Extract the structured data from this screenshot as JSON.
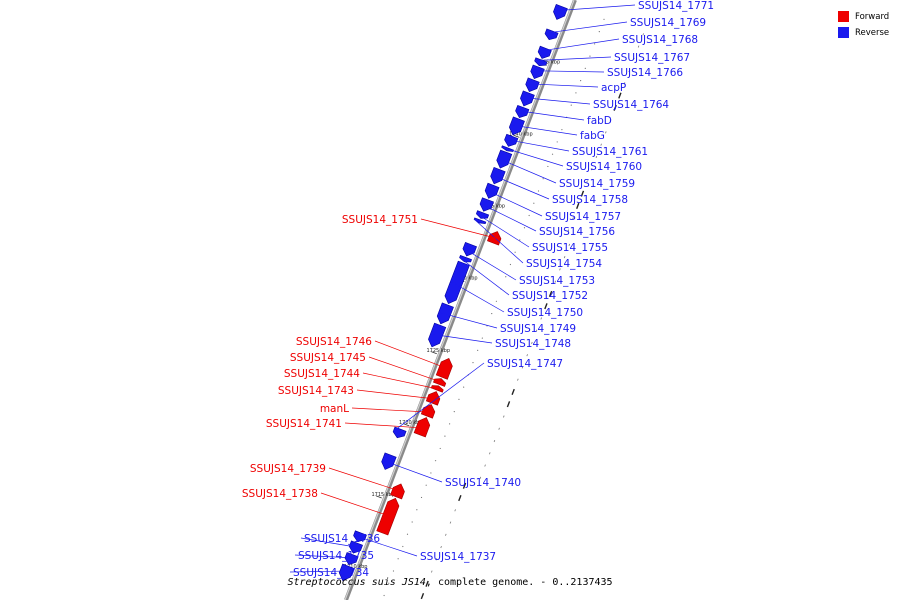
{
  "colors": {
    "forward": "#ee0000",
    "reverse": "#1a1aee",
    "backbone": "#aaaaaa"
  },
  "legend": [
    {
      "label": "Forward",
      "color": "#ee0000"
    },
    {
      "label": "Reverse",
      "color": "#1a1aee"
    }
  ],
  "caption": {
    "organism": "Streptococcus suis JS14",
    "rest": ", complete genome. - 0..2137435"
  },
  "ticks": [
    {
      "kbp": 1745,
      "label": "1745 kbp"
    },
    {
      "kbp": 1740,
      "label": "1740 kbp"
    },
    {
      "kbp": 1735,
      "label": "1735 kbp"
    },
    {
      "kbp": 1730,
      "label": "1730 kbp"
    },
    {
      "kbp": 1725,
      "label": "1725 kbp"
    },
    {
      "kbp": 1720,
      "label": "1720 kbp"
    },
    {
      "kbp": 1715,
      "label": "1715 kbp"
    },
    {
      "kbp": 1710,
      "label": "1710 kbp"
    }
  ],
  "genes": [
    {
      "name": "SSUJS14_1771",
      "strand": "reverse",
      "start": 1748.0,
      "end": 1748.9
    },
    {
      "name": "SSUJS14_1769",
      "strand": "reverse",
      "start": 1746.6,
      "end": 1747.2
    },
    {
      "name": "SSUJS14_1768",
      "strand": "reverse",
      "start": 1745.3,
      "end": 1746.0
    },
    {
      "name": "SSUJS14_1767",
      "strand": "reverse",
      "start": 1744.8,
      "end": 1745.2
    },
    {
      "name": "SSUJS14_1766",
      "strand": "reverse",
      "start": 1743.9,
      "end": 1744.7
    },
    {
      "name": "acpP",
      "strand": "reverse",
      "start": 1743.0,
      "end": 1743.8
    },
    {
      "name": "SSUJS14_1764",
      "strand": "reverse",
      "start": 1742.0,
      "end": 1742.9
    },
    {
      "name": "fabD",
      "strand": "reverse",
      "start": 1741.2,
      "end": 1741.9
    },
    {
      "name": "fabG",
      "strand": "reverse",
      "start": 1740.0,
      "end": 1741.1
    },
    {
      "name": "SSUJS14_1761",
      "strand": "reverse",
      "start": 1739.2,
      "end": 1739.9
    },
    {
      "name": "SSUJS14_1760",
      "strand": "reverse",
      "start": 1738.9,
      "end": 1739.1
    },
    {
      "name": "SSUJS14_1759",
      "strand": "reverse",
      "start": 1737.7,
      "end": 1738.8
    },
    {
      "name": "SSUJS14_1758",
      "strand": "reverse",
      "start": 1736.6,
      "end": 1737.6
    },
    {
      "name": "SSUJS14_1757",
      "strand": "reverse",
      "start": 1735.6,
      "end": 1736.5
    },
    {
      "name": "SSUJS14_1756",
      "strand": "reverse",
      "start": 1734.7,
      "end": 1735.5
    },
    {
      "name": "SSUJS14_1755",
      "strand": "reverse",
      "start": 1734.2,
      "end": 1734.6
    },
    {
      "name": "SSUJS14_1754",
      "strand": "reverse",
      "start": 1733.9,
      "end": 1734.1
    },
    {
      "name": "SSUJS14_1751",
      "strand": "forward",
      "start": 1733.0,
      "end": 1733.8
    },
    {
      "name": "SSUJS14_1753",
      "strand": "reverse",
      "start": 1731.6,
      "end": 1732.4
    },
    {
      "name": "SSUJS14_1752",
      "strand": "reverse",
      "start": 1731.2,
      "end": 1731.5
    },
    {
      "name": "SSUJS14_1750",
      "strand": "reverse",
      "start": 1728.3,
      "end": 1731.1
    },
    {
      "name": "SSUJS14_1749",
      "strand": "reverse",
      "start": 1726.9,
      "end": 1728.2
    },
    {
      "name": "SSUJS14_1748",
      "strand": "reverse",
      "start": 1725.3,
      "end": 1726.8
    },
    {
      "name": "SSUJS14_1746",
      "strand": "forward",
      "start": 1723.7,
      "end": 1725.0
    },
    {
      "name": "SSUJS14_1745",
      "strand": "forward",
      "start": 1723.2,
      "end": 1723.6
    },
    {
      "name": "SSUJS14_1744",
      "strand": "forward",
      "start": 1722.8,
      "end": 1723.1
    },
    {
      "name": "SSUJS14_1743",
      "strand": "forward",
      "start": 1721.9,
      "end": 1722.7
    },
    {
      "name": "manL",
      "strand": "forward",
      "start": 1721.0,
      "end": 1721.8
    },
    {
      "name": "SSUJS14_1741",
      "strand": "forward",
      "start": 1719.7,
      "end": 1720.9
    },
    {
      "name": "SSUJS14_1747",
      "strand": "reverse",
      "start": 1719.0,
      "end": 1719.6
    },
    {
      "name": "SSUJS14_1740",
      "strand": "reverse",
      "start": 1716.8,
      "end": 1717.8
    },
    {
      "name": "SSUJS14_1739",
      "strand": "forward",
      "start": 1715.4,
      "end": 1716.3
    },
    {
      "name": "SSUJS14_1738",
      "strand": "forward",
      "start": 1712.9,
      "end": 1715.3
    },
    {
      "name": "SSUJS14_1737",
      "strand": "reverse",
      "start": 1711.8,
      "end": 1712.4
    },
    {
      "name": "SSUJS14_1736",
      "strand": "reverse",
      "start": 1711.0,
      "end": 1711.7
    },
    {
      "name": "SSUJS14_1735",
      "strand": "reverse",
      "start": 1710.2,
      "end": 1710.9
    },
    {
      "name": "SSUJS14_1734",
      "strand": "reverse",
      "start": 1709.1,
      "end": 1710.1
    }
  ]
}
